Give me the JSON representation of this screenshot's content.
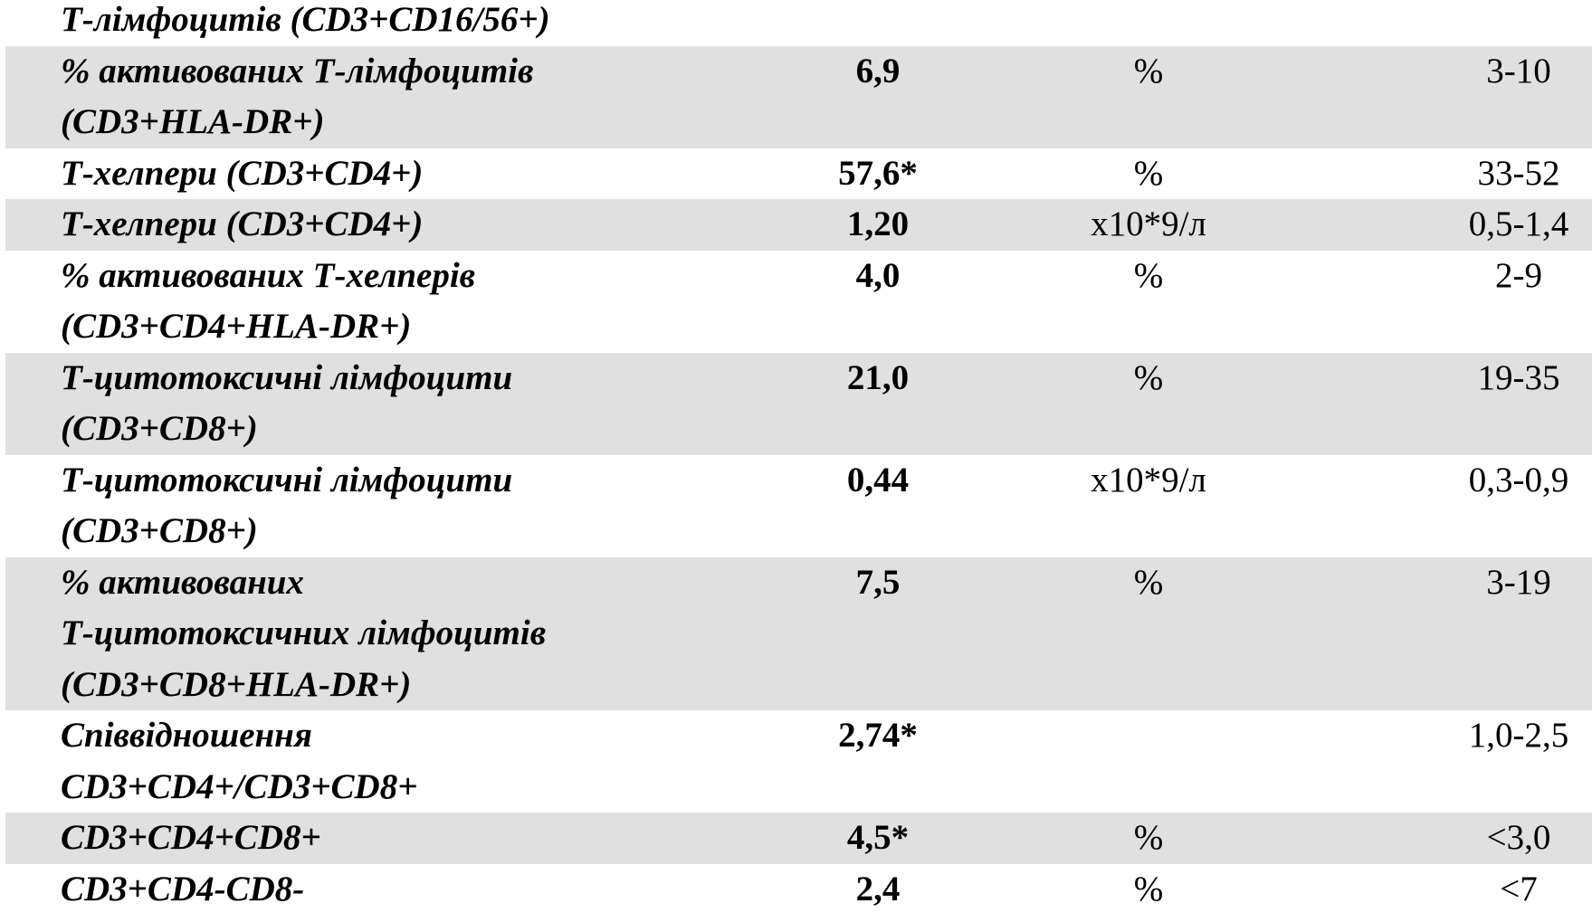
{
  "table": {
    "rows": [
      {
        "label": [
          "Т-лімфоцитів (CD3+CD16/56+)"
        ]
      },
      {
        "label": [
          "% активованих Т-лімфоцитів",
          "(CD3+HLA-DR+)"
        ],
        "value": "6,9",
        "unit": "%",
        "ref": "3-10"
      },
      {
        "label": [
          "Т-хелпери (CD3+CD4+)"
        ],
        "value": "57,6*",
        "unit": "%",
        "ref": "33-52"
      },
      {
        "label": [
          "Т-хелпери (CD3+CD4+)"
        ],
        "value": "1,20",
        "unit": "х10*9/л",
        "ref": "0,5-1,4"
      },
      {
        "label": [
          "% активованих Т-хелперів",
          "(CD3+CD4+HLA-DR+)"
        ],
        "value": "4,0",
        "unit": "%",
        "ref": "2-9"
      },
      {
        "label": [
          "Т-цитотоксичні лімфоцити",
          "(CD3+CD8+)"
        ],
        "value": "21,0",
        "unit": "%",
        "ref": "19-35"
      },
      {
        "label": [
          "Т-цитотоксичні лімфоцити",
          "(CD3+CD8+)"
        ],
        "value": "0,44",
        "unit": "х10*9/л",
        "ref": "0,3-0,9"
      },
      {
        "label": [
          "% активованих",
          "Т-цитотоксичних лімфоцитів",
          "(CD3+CD8+HLA-DR+)"
        ],
        "value": "7,5",
        "unit": "%",
        "ref": "3-19"
      },
      {
        "label": [
          "Співвідношення",
          "CD3+CD4+/CD3+CD8+"
        ],
        "value": "2,74*",
        "ref": "1,0-2,5"
      },
      {
        "label": [
          "CD3+CD4+CD8+"
        ],
        "value": "4,5*",
        "unit": "%",
        "ref": "<3,0"
      },
      {
        "label": [
          "CD3+CD4-CD8-"
        ],
        "value": "2,4",
        "unit": "%",
        "ref": "<7"
      }
    ]
  }
}
